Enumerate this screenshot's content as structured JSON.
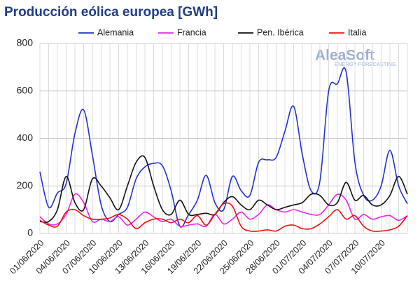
{
  "chart_data": {
    "type": "line",
    "title": "Producción eólica europea [GWh]",
    "logo": {
      "name": "AleaSoft",
      "tagline": "ENERGY FORECASTING"
    },
    "categories": [
      "01/06/2020",
      null,
      null,
      "04/06/2020",
      null,
      null,
      "07/06/2020",
      null,
      null,
      "10/06/2020",
      null,
      null,
      "13/06/2020",
      null,
      null,
      "16/06/2020",
      null,
      null,
      "19/06/2020",
      null,
      null,
      "22/06/2020",
      null,
      null,
      "25/06/2020",
      null,
      null,
      "28/06/2020",
      null,
      null,
      "01/07/2020",
      null,
      null,
      "04/07/2020",
      null,
      null,
      "07/07/2020",
      null,
      null,
      "10/07/2020",
      null,
      null,
      null
    ],
    "series": [
      {
        "name": "Alemania",
        "color": "#2233cc",
        "values": [
          260,
          110,
          170,
          210,
          420,
          520,
          330,
          120,
          50,
          80,
          110,
          230,
          280,
          295,
          285,
          180,
          30,
          80,
          140,
          245,
          130,
          100,
          240,
          180,
          160,
          300,
          310,
          320,
          430,
          535,
          330,
          180,
          220,
          600,
          630,
          680,
          300,
          160,
          140,
          200,
          350,
          200,
          125
        ]
      },
      {
        "name": "Francia",
        "color": "#ee22ee",
        "values": [
          70,
          40,
          40,
          80,
          165,
          130,
          50,
          60,
          50,
          70,
          35,
          60,
          90,
          70,
          50,
          60,
          30,
          35,
          40,
          30,
          80,
          40,
          60,
          90,
          60,
          80,
          120,
          100,
          90,
          100,
          90,
          80,
          80,
          120,
          165,
          140,
          60,
          80,
          60,
          70,
          75,
          55,
          75
        ]
      },
      {
        "name": "Pen. Ibérica",
        "color": "#111111",
        "values": [
          50,
          50,
          100,
          240,
          130,
          100,
          230,
          200,
          150,
          100,
          200,
          300,
          320,
          200,
          100,
          80,
          140,
          80,
          80,
          85,
          80,
          130,
          155,
          120,
          100,
          140,
          120,
          100,
          110,
          120,
          130,
          165,
          160,
          120,
          130,
          215,
          140,
          160,
          120,
          120,
          160,
          240,
          165
        ]
      },
      {
        "name": "Italia",
        "color": "#ee1111",
        "values": [
          55,
          35,
          30,
          90,
          100,
          75,
          60,
          60,
          65,
          80,
          60,
          20,
          45,
          60,
          60,
          45,
          60,
          45,
          75,
          35,
          80,
          125,
          115,
          30,
          10,
          10,
          15,
          10,
          30,
          35,
          20,
          20,
          40,
          70,
          100,
          60,
          75,
          30,
          10,
          10,
          15,
          30,
          75
        ]
      }
    ],
    "ylim": [
      0,
      800
    ],
    "yticks": [
      0,
      200,
      400,
      600,
      800
    ],
    "grid": true,
    "xgrid": true,
    "legend": "top"
  }
}
